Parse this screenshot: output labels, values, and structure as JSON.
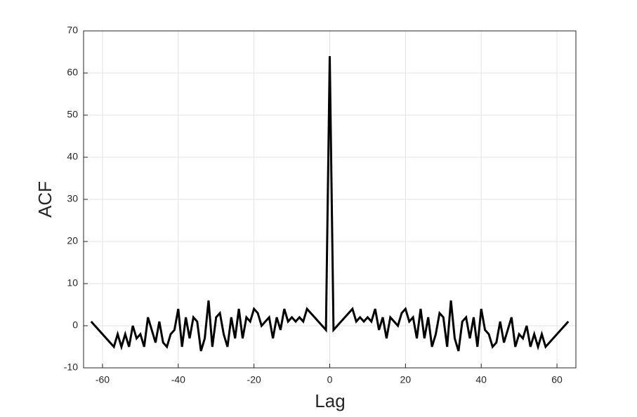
{
  "chart_data": {
    "type": "line",
    "x_label": "Lag",
    "y_label": "ACF",
    "x": [
      -63,
      -62,
      -61,
      -60,
      -59,
      -58,
      -57,
      -56,
      -55,
      -54,
      -53,
      -52,
      -51,
      -50,
      -49,
      -48,
      -47,
      -46,
      -45,
      -44,
      -43,
      -42,
      -41,
      -40,
      -39,
      -38,
      -37,
      -36,
      -35,
      -34,
      -33,
      -32,
      -31,
      -30,
      -29,
      -28,
      -27,
      -26,
      -25,
      -24,
      -23,
      -22,
      -21,
      -20,
      -19,
      -18,
      -17,
      -16,
      -15,
      -14,
      -13,
      -12,
      -11,
      -10,
      -9,
      -8,
      -7,
      -6,
      -5,
      -4,
      -3,
      -2,
      -1,
      0,
      1,
      2,
      3,
      4,
      5,
      6,
      7,
      8,
      9,
      10,
      11,
      12,
      13,
      14,
      15,
      16,
      17,
      18,
      19,
      20,
      21,
      22,
      23,
      24,
      25,
      26,
      27,
      28,
      29,
      30,
      31,
      32,
      33,
      34,
      35,
      36,
      37,
      38,
      39,
      40,
      41,
      42,
      43,
      44,
      45,
      46,
      47,
      48,
      49,
      50,
      51,
      52,
      53,
      54,
      55,
      56,
      57,
      58,
      59,
      60,
      61,
      62,
      63
    ],
    "values": [
      1,
      0,
      -1,
      -2,
      -3,
      -4,
      -5,
      -2,
      -5,
      -2,
      -5,
      0,
      -3,
      -2,
      -5,
      2,
      -1,
      -4,
      1,
      -4,
      -5,
      -2,
      -1,
      4,
      -5,
      2,
      -3,
      2,
      1,
      -6,
      -3,
      6,
      -5,
      2,
      3,
      -2,
      -5,
      2,
      -3,
      4,
      -3,
      2,
      1,
      4,
      3,
      0,
      1,
      2,
      -3,
      2,
      -1,
      4,
      1,
      2,
      1,
      2,
      1,
      4,
      3,
      2,
      1,
      0,
      -1,
      64,
      -1,
      0,
      1,
      2,
      3,
      4,
      1,
      2,
      1,
      2,
      1,
      4,
      -1,
      2,
      -3,
      2,
      1,
      0,
      3,
      4,
      1,
      2,
      -3,
      4,
      -3,
      2,
      -5,
      -2,
      3,
      2,
      -5,
      6,
      -3,
      -6,
      1,
      2,
      -3,
      2,
      -5,
      4,
      -1,
      -2,
      -5,
      -4,
      1,
      -4,
      -1,
      2,
      -5,
      -2,
      -3,
      0,
      -5,
      -2,
      -5,
      -2,
      -5,
      -4,
      -3,
      -2,
      -1,
      0,
      1
    ],
    "color": "#000000",
    "xlim": [
      -65,
      65
    ],
    "ylim": [
      -10,
      70
    ],
    "xticks": [
      -60,
      -40,
      -20,
      0,
      20,
      40,
      60
    ],
    "yticks": [
      -10,
      0,
      10,
      20,
      30,
      40,
      50,
      60,
      70
    ],
    "grid": true
  }
}
